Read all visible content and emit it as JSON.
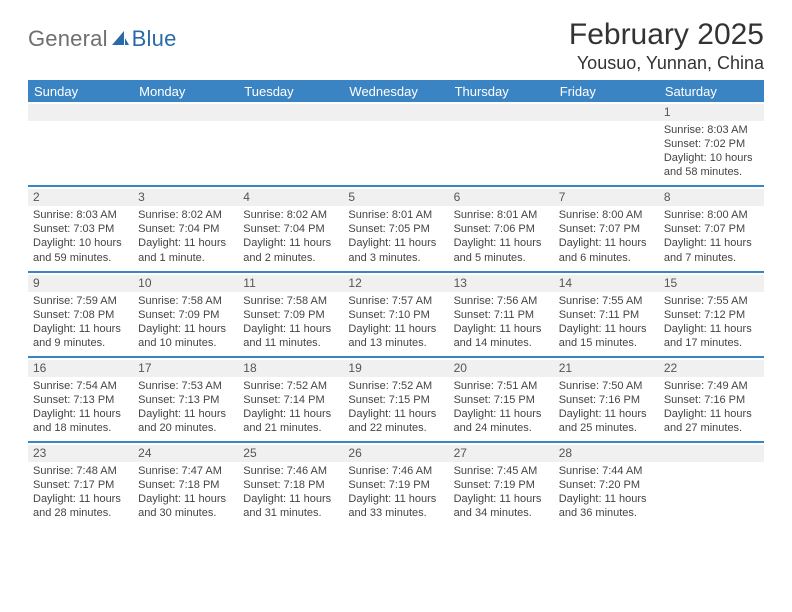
{
  "brand": {
    "part1": "General",
    "part2": "Blue"
  },
  "title": "February 2025",
  "subtitle": "Yousuo, Yunnan, China",
  "colors": {
    "accent": "#3b84c4",
    "header_text": "#ffffff",
    "daynum_bg": "#f0f0f0",
    "text": "#444444",
    "brand_gray": "#6f6f6f",
    "brand_blue": "#2b6aa8"
  },
  "day_headers": [
    "Sunday",
    "Monday",
    "Tuesday",
    "Wednesday",
    "Thursday",
    "Friday",
    "Saturday"
  ],
  "weeks": [
    [
      {
        "n": "",
        "t": ""
      },
      {
        "n": "",
        "t": ""
      },
      {
        "n": "",
        "t": ""
      },
      {
        "n": "",
        "t": ""
      },
      {
        "n": "",
        "t": ""
      },
      {
        "n": "",
        "t": ""
      },
      {
        "n": "1",
        "t": "Sunrise: 8:03 AM\nSunset: 7:02 PM\nDaylight: 10 hours and 58 minutes."
      }
    ],
    [
      {
        "n": "2",
        "t": "Sunrise: 8:03 AM\nSunset: 7:03 PM\nDaylight: 10 hours and 59 minutes."
      },
      {
        "n": "3",
        "t": "Sunrise: 8:02 AM\nSunset: 7:04 PM\nDaylight: 11 hours and 1 minute."
      },
      {
        "n": "4",
        "t": "Sunrise: 8:02 AM\nSunset: 7:04 PM\nDaylight: 11 hours and 2 minutes."
      },
      {
        "n": "5",
        "t": "Sunrise: 8:01 AM\nSunset: 7:05 PM\nDaylight: 11 hours and 3 minutes."
      },
      {
        "n": "6",
        "t": "Sunrise: 8:01 AM\nSunset: 7:06 PM\nDaylight: 11 hours and 5 minutes."
      },
      {
        "n": "7",
        "t": "Sunrise: 8:00 AM\nSunset: 7:07 PM\nDaylight: 11 hours and 6 minutes."
      },
      {
        "n": "8",
        "t": "Sunrise: 8:00 AM\nSunset: 7:07 PM\nDaylight: 11 hours and 7 minutes."
      }
    ],
    [
      {
        "n": "9",
        "t": "Sunrise: 7:59 AM\nSunset: 7:08 PM\nDaylight: 11 hours and 9 minutes."
      },
      {
        "n": "10",
        "t": "Sunrise: 7:58 AM\nSunset: 7:09 PM\nDaylight: 11 hours and 10 minutes."
      },
      {
        "n": "11",
        "t": "Sunrise: 7:58 AM\nSunset: 7:09 PM\nDaylight: 11 hours and 11 minutes."
      },
      {
        "n": "12",
        "t": "Sunrise: 7:57 AM\nSunset: 7:10 PM\nDaylight: 11 hours and 13 minutes."
      },
      {
        "n": "13",
        "t": "Sunrise: 7:56 AM\nSunset: 7:11 PM\nDaylight: 11 hours and 14 minutes."
      },
      {
        "n": "14",
        "t": "Sunrise: 7:55 AM\nSunset: 7:11 PM\nDaylight: 11 hours and 15 minutes."
      },
      {
        "n": "15",
        "t": "Sunrise: 7:55 AM\nSunset: 7:12 PM\nDaylight: 11 hours and 17 minutes."
      }
    ],
    [
      {
        "n": "16",
        "t": "Sunrise: 7:54 AM\nSunset: 7:13 PM\nDaylight: 11 hours and 18 minutes."
      },
      {
        "n": "17",
        "t": "Sunrise: 7:53 AM\nSunset: 7:13 PM\nDaylight: 11 hours and 20 minutes."
      },
      {
        "n": "18",
        "t": "Sunrise: 7:52 AM\nSunset: 7:14 PM\nDaylight: 11 hours and 21 minutes."
      },
      {
        "n": "19",
        "t": "Sunrise: 7:52 AM\nSunset: 7:15 PM\nDaylight: 11 hours and 22 minutes."
      },
      {
        "n": "20",
        "t": "Sunrise: 7:51 AM\nSunset: 7:15 PM\nDaylight: 11 hours and 24 minutes."
      },
      {
        "n": "21",
        "t": "Sunrise: 7:50 AM\nSunset: 7:16 PM\nDaylight: 11 hours and 25 minutes."
      },
      {
        "n": "22",
        "t": "Sunrise: 7:49 AM\nSunset: 7:16 PM\nDaylight: 11 hours and 27 minutes."
      }
    ],
    [
      {
        "n": "23",
        "t": "Sunrise: 7:48 AM\nSunset: 7:17 PM\nDaylight: 11 hours and 28 minutes."
      },
      {
        "n": "24",
        "t": "Sunrise: 7:47 AM\nSunset: 7:18 PM\nDaylight: 11 hours and 30 minutes."
      },
      {
        "n": "25",
        "t": "Sunrise: 7:46 AM\nSunset: 7:18 PM\nDaylight: 11 hours and 31 minutes."
      },
      {
        "n": "26",
        "t": "Sunrise: 7:46 AM\nSunset: 7:19 PM\nDaylight: 11 hours and 33 minutes."
      },
      {
        "n": "27",
        "t": "Sunrise: 7:45 AM\nSunset: 7:19 PM\nDaylight: 11 hours and 34 minutes."
      },
      {
        "n": "28",
        "t": "Sunrise: 7:44 AM\nSunset: 7:20 PM\nDaylight: 11 hours and 36 minutes."
      },
      {
        "n": "",
        "t": ""
      }
    ]
  ]
}
